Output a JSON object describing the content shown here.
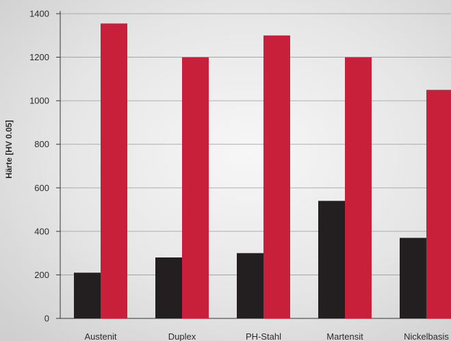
{
  "chart_data": {
    "type": "bar",
    "title": "",
    "xlabel": "",
    "ylabel": "Härte [HV 0.05]",
    "ylim": [
      0,
      1400
    ],
    "yticks": [
      0,
      200,
      400,
      600,
      800,
      1000,
      1200,
      1400
    ],
    "grid": true,
    "legend": "none",
    "categories": [
      "Austenit",
      "Duplex",
      "PH-Stahl",
      "Martensit",
      "Nickelbasis"
    ],
    "series": [
      {
        "values": [
          210,
          280,
          300,
          540,
          370
        ],
        "color": "#231f20"
      },
      {
        "values": [
          1355,
          1200,
          1300,
          1200,
          1050
        ],
        "color": "#c8203a"
      }
    ]
  }
}
